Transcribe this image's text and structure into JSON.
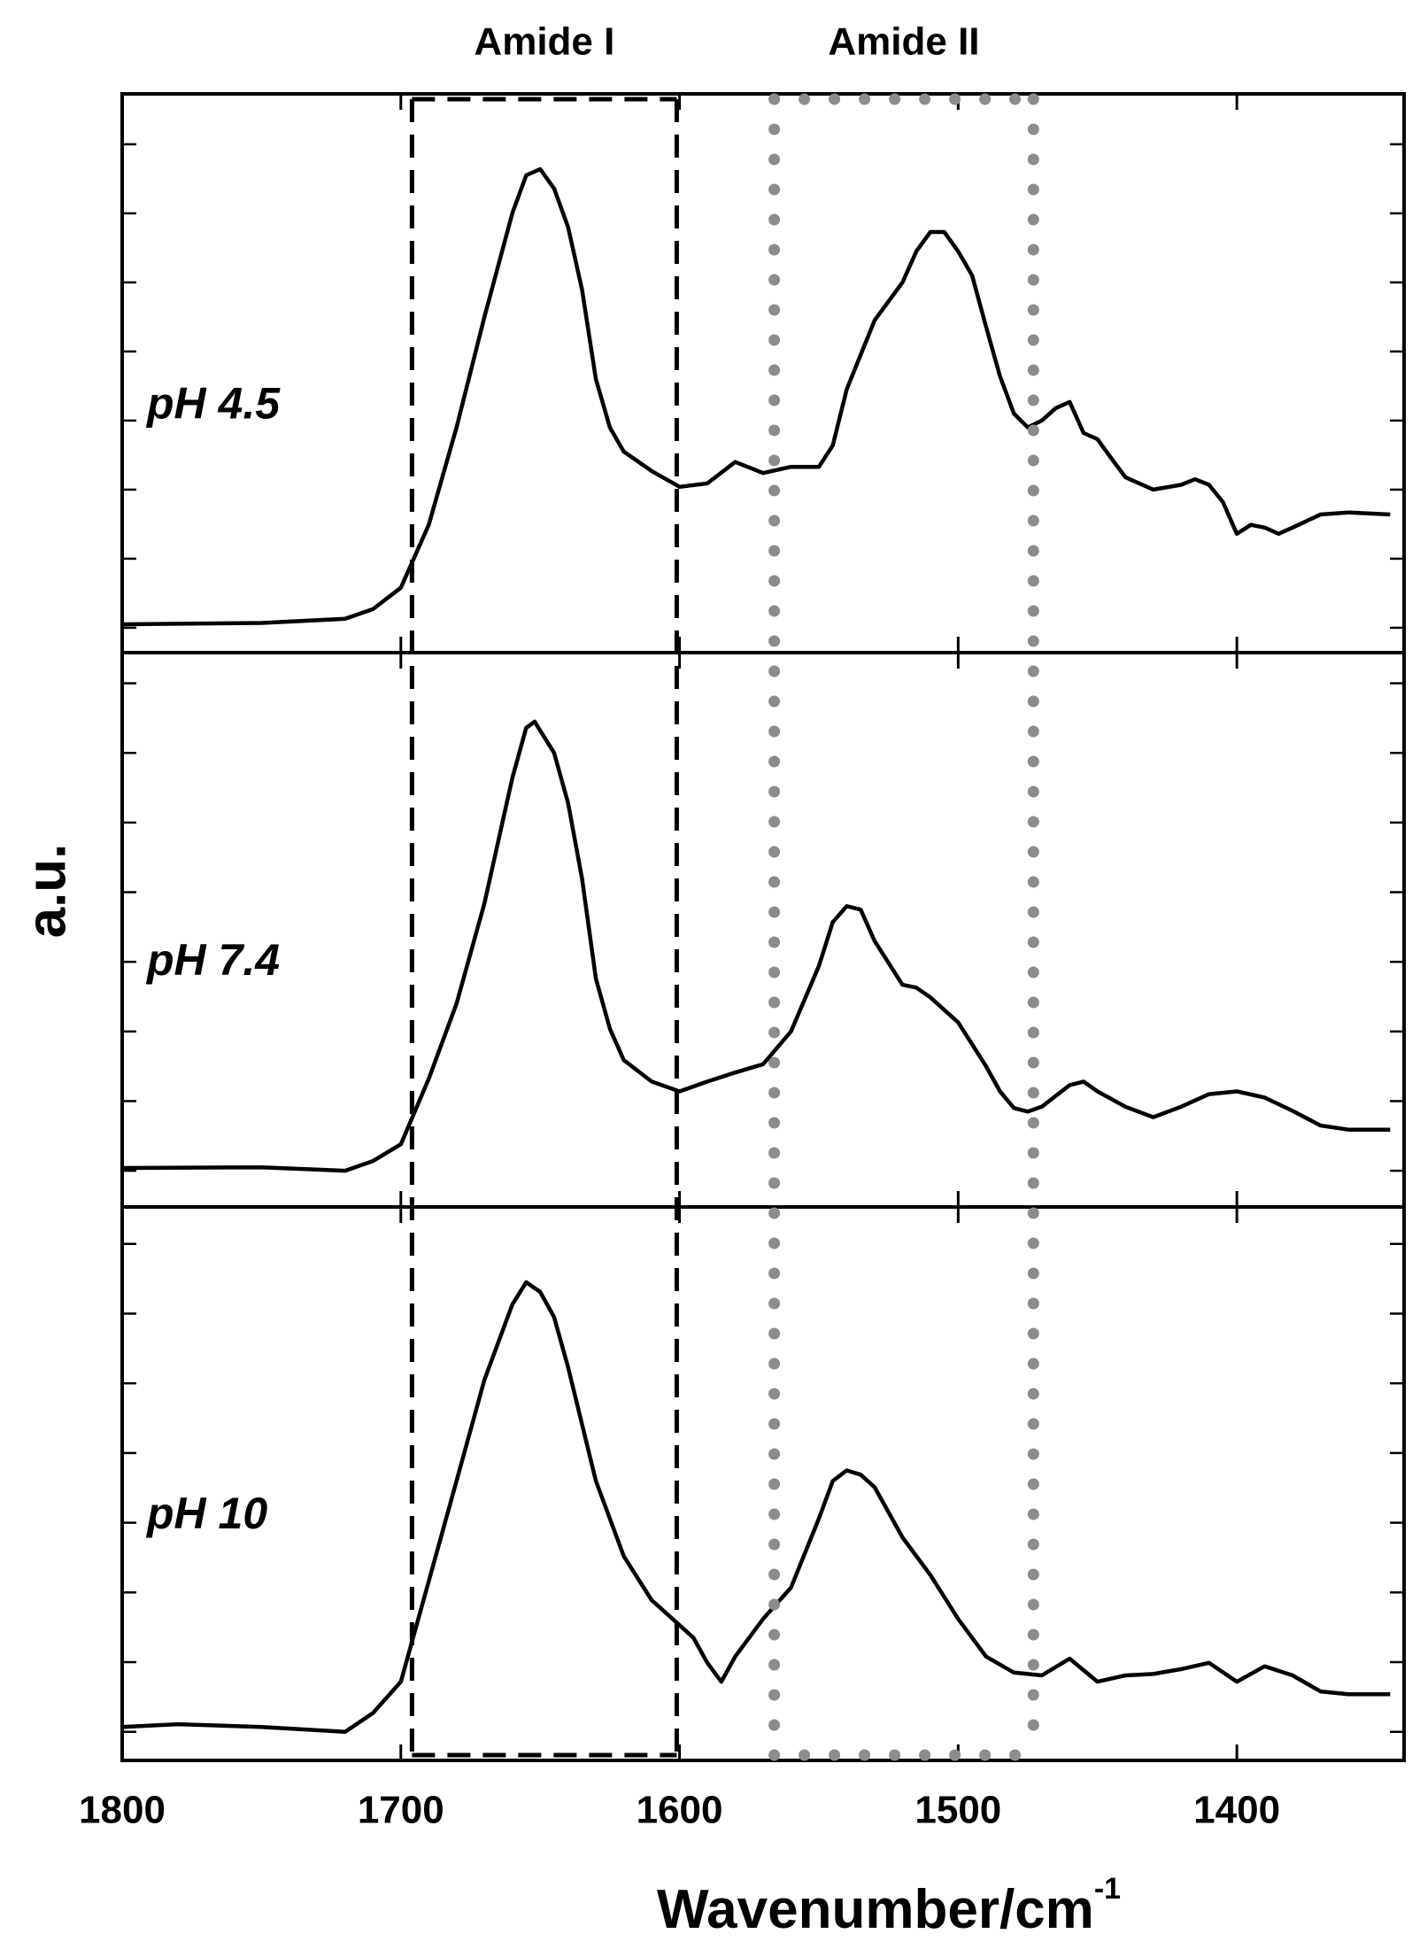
{
  "figure": {
    "xlabel": {
      "text": "Wavenumber/cm",
      "superscript": "-1"
    },
    "ylabel": "a.u.",
    "regions": [
      {
        "label": "Amide I",
        "x": [
          1696,
          1601
        ],
        "color": "#000000",
        "style": "dashed"
      },
      {
        "label": "Amide II",
        "x": [
          1566,
          1473
        ],
        "color": "#8c8c8c",
        "style": "dotted"
      }
    ]
  },
  "chart_data": [
    {
      "type": "line",
      "xlim": [
        1800,
        1340
      ],
      "ylim": [
        -0.36,
        7.73
      ],
      "yticks": [
        0,
        1,
        2,
        3,
        4,
        5,
        6,
        7
      ],
      "series": [
        {
          "name": "pH 4.5",
          "color": "#000000",
          "x": [
            1800,
            1750,
            1720,
            1710,
            1700,
            1690,
            1680,
            1670,
            1660,
            1655,
            1650,
            1645,
            1640,
            1635,
            1630,
            1625,
            1620,
            1610,
            1600,
            1590,
            1580,
            1570,
            1560,
            1550,
            1545,
            1540,
            1530,
            1520,
            1515,
            1510,
            1505,
            1500,
            1495,
            1490,
            1485,
            1480,
            1475,
            1470,
            1465,
            1460,
            1455,
            1450,
            1445,
            1440,
            1430,
            1420,
            1415,
            1410,
            1405,
            1400,
            1395,
            1390,
            1385,
            1380,
            1370,
            1360,
            1345
          ],
          "values": [
            0.05,
            0.07,
            0.13,
            0.27,
            0.58,
            1.49,
            2.9,
            4.5,
            6.0,
            6.55,
            6.64,
            6.36,
            5.8,
            4.9,
            3.6,
            2.9,
            2.55,
            2.27,
            2.04,
            2.09,
            2.4,
            2.24,
            2.33,
            2.33,
            2.64,
            3.45,
            4.45,
            5.0,
            5.45,
            5.73,
            5.73,
            5.45,
            5.1,
            4.36,
            3.64,
            3.1,
            2.9,
            3.0,
            3.18,
            3.27,
            2.82,
            2.73,
            2.45,
            2.18,
            2.0,
            2.07,
            2.15,
            2.07,
            1.82,
            1.36,
            1.49,
            1.45,
            1.36,
            1.45,
            1.64,
            1.67,
            1.64
          ]
        }
      ]
    },
    {
      "type": "line",
      "xlim": [
        1800,
        1340
      ],
      "ylim": [
        -0.52,
        7.44
      ],
      "yticks": [
        0,
        1,
        2,
        3,
        4,
        5,
        6,
        7
      ],
      "series": [
        {
          "name": "pH 7.4",
          "color": "#000000",
          "x": [
            1800,
            1750,
            1720,
            1710,
            1700,
            1690,
            1680,
            1670,
            1660,
            1655,
            1652,
            1645,
            1640,
            1635,
            1630,
            1625,
            1620,
            1610,
            1600,
            1590,
            1580,
            1570,
            1560,
            1550,
            1545,
            1540,
            1535,
            1530,
            1520,
            1515,
            1510,
            1500,
            1490,
            1485,
            1480,
            1475,
            1470,
            1460,
            1455,
            1450,
            1440,
            1430,
            1420,
            1410,
            1400,
            1390,
            1380,
            1370,
            1360,
            1345
          ],
          "values": [
            0.04,
            0.05,
            0,
            0.14,
            0.38,
            1.32,
            2.4,
            3.84,
            5.64,
            6.36,
            6.45,
            6.0,
            5.28,
            4.2,
            2.76,
            2.04,
            1.59,
            1.28,
            1.14,
            1.28,
            1.41,
            1.53,
            2.0,
            2.94,
            3.57,
            3.8,
            3.75,
            3.3,
            2.67,
            2.63,
            2.49,
            2.13,
            1.5,
            1.14,
            0.9,
            0.85,
            0.92,
            1.23,
            1.28,
            1.14,
            0.92,
            0.77,
            0.92,
            1.1,
            1.14,
            1.05,
            0.86,
            0.65,
            0.59,
            0.59
          ]
        }
      ]
    },
    {
      "type": "line",
      "xlim": [
        1800,
        1340
      ],
      "ylim": [
        -0.41,
        7.53
      ],
      "yticks": [
        0,
        1,
        2,
        3,
        4,
        5,
        6,
        7
      ],
      "xticks": [
        1800,
        1700,
        1600,
        1500,
        1400
      ],
      "series": [
        {
          "name": "pH 10",
          "color": "#000000",
          "x": [
            1800,
            1780,
            1750,
            1720,
            1710,
            1700,
            1690,
            1680,
            1670,
            1660,
            1655,
            1650,
            1645,
            1640,
            1630,
            1620,
            1610,
            1600,
            1595,
            1590,
            1585,
            1580,
            1570,
            1560,
            1550,
            1545,
            1540,
            1535,
            1530,
            1520,
            1510,
            1500,
            1490,
            1480,
            1470,
            1460,
            1450,
            1440,
            1430,
            1420,
            1410,
            1400,
            1390,
            1380,
            1370,
            1360,
            1345
          ],
          "values": [
            0.07,
            0.11,
            0.07,
            0,
            0.27,
            0.72,
            2.16,
            3.6,
            5.05,
            6.13,
            6.45,
            6.31,
            5.95,
            5.23,
            3.6,
            2.52,
            1.89,
            1.53,
            1.35,
            0.99,
            0.72,
            1.08,
            1.62,
            2.07,
            3.06,
            3.6,
            3.75,
            3.69,
            3.51,
            2.79,
            2.25,
            1.62,
            1.08,
            0.85,
            0.81,
            1.05,
            0.72,
            0.81,
            0.83,
            0.9,
            0.99,
            0.72,
            0.94,
            0.81,
            0.58,
            0.54,
            0.54
          ]
        }
      ]
    }
  ]
}
